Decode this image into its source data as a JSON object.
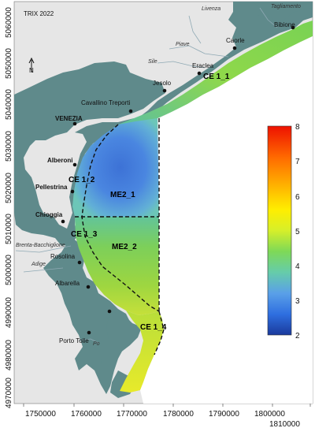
{
  "title": "TRIX 2022",
  "north_label": "N",
  "colors": {
    "sea_background": "#e6e6e6",
    "land": "#5f8a8b",
    "outside": "#ffffff"
  },
  "cities": [
    {
      "name": "VENEZIA",
      "bold": true
    },
    {
      "name": "Cavallino Treporti",
      "bold": false
    },
    {
      "name": "Jesolo",
      "bold": false
    },
    {
      "name": "Eraclea",
      "bold": false
    },
    {
      "name": "Caorle",
      "bold": false
    },
    {
      "name": "Bibione",
      "bold": false
    },
    {
      "name": "Alberoni",
      "bold": true
    },
    {
      "name": "Pellestrina",
      "bold": true
    },
    {
      "name": "Chioggia",
      "bold": true
    },
    {
      "name": "Rosolina",
      "bold": false
    },
    {
      "name": "Albarella",
      "bold": false
    },
    {
      "name": "Porto Tolle",
      "bold": false
    }
  ],
  "rivers": [
    "Livenza",
    "Tagliamento",
    "Piave",
    "Sile",
    "Brenta-Bacchiglione",
    "Adige",
    "Po"
  ],
  "zones": [
    "CE 1_1",
    "CE 1_2",
    "ME2_1",
    "CE 1_3",
    "ME2_2",
    "CE 1_4"
  ],
  "x_ticks": [
    "1750000",
    "1760000",
    "1770000",
    "1780000",
    "1790000",
    "1800000",
    "1810000"
  ],
  "y_ticks": [
    "4970000",
    "4980000",
    "4990000",
    "5000000",
    "5010000",
    "5020000",
    "5030000",
    "5040000",
    "5050000",
    "5060000"
  ],
  "colorbar": {
    "min": 2,
    "max": 8,
    "labels": [
      "2",
      "3",
      "4",
      "5",
      "6",
      "7",
      "8"
    ]
  }
}
